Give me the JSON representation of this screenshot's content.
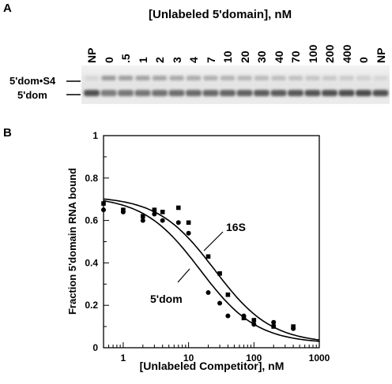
{
  "panel_a": {
    "label": "A",
    "title": "[Unlabeled 5'domain], nM",
    "lanes": [
      "NP",
      "0",
      ".5",
      "1",
      "2",
      "3",
      "4",
      "7",
      "10",
      "20",
      "30",
      "40",
      "70",
      "100",
      "200",
      "400",
      "0",
      "NP"
    ],
    "band_labels": {
      "upper": "5'dom•S4",
      "lower": "5'dom"
    }
  },
  "panel_b": {
    "label": "B"
  },
  "chart_data": {
    "type": "scatter",
    "xlabel": "[Unlabeled Competitor], nM",
    "ylabel": "Fraction 5'domain RNA bound",
    "xscale": "log",
    "xlim": [
      0.5,
      1000
    ],
    "ylim": [
      0,
      1
    ],
    "xticks": [
      1,
      10,
      100,
      1000
    ],
    "xtick_labels": [
      "1",
      "10",
      "100",
      "1000"
    ],
    "yticks": [
      0,
      0.2,
      0.4,
      0.6,
      0.8,
      1
    ],
    "ytick_labels": [
      "0",
      "0.2",
      "0.4",
      "0.6",
      "0.8",
      "1"
    ],
    "grid": false,
    "series": [
      {
        "name": "16S",
        "marker": "square",
        "points": [
          [
            0.5,
            0.68
          ],
          [
            1,
            0.65
          ],
          [
            2,
            0.62
          ],
          [
            3,
            0.65
          ],
          [
            4,
            0.64
          ],
          [
            7,
            0.66
          ],
          [
            10,
            0.59
          ],
          [
            20,
            0.43
          ],
          [
            30,
            0.35
          ],
          [
            40,
            0.25
          ],
          [
            70,
            0.14
          ],
          [
            100,
            0.13
          ],
          [
            200,
            0.1
          ],
          [
            400,
            0.1
          ]
        ],
        "fit": {
          "top": 0.715,
          "bottom": 0.02,
          "ic50": 25
        }
      },
      {
        "name": "5'dom",
        "marker": "circle",
        "points": [
          [
            0.5,
            0.65
          ],
          [
            1,
            0.64
          ],
          [
            2,
            0.6
          ],
          [
            3,
            0.63
          ],
          [
            4,
            0.6
          ],
          [
            7,
            0.59
          ],
          [
            10,
            0.54
          ],
          [
            20,
            0.26
          ],
          [
            30,
            0.21
          ],
          [
            40,
            0.15
          ],
          [
            70,
            0.15
          ],
          [
            100,
            0.11
          ],
          [
            200,
            0.12
          ],
          [
            400,
            0.09
          ]
        ],
        "fit": {
          "top": 0.715,
          "bottom": 0.02,
          "ic50": 15
        }
      }
    ],
    "annotations": [
      "16S",
      "5'dom"
    ]
  }
}
